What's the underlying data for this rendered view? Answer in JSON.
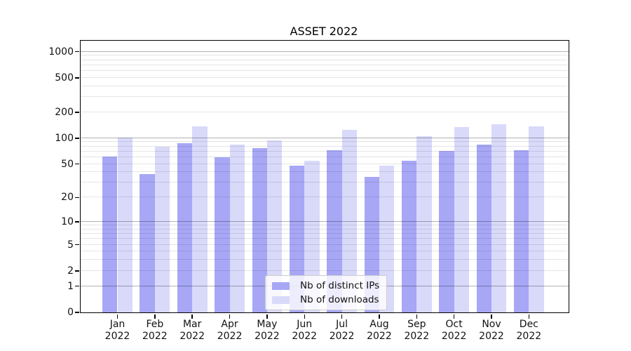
{
  "chart_data": {
    "type": "bar",
    "title": "ASSET 2022",
    "categories": [
      "Jan",
      "Feb",
      "Mar",
      "Apr",
      "May",
      "Jun",
      "Jul",
      "Aug",
      "Sep",
      "Oct",
      "Nov",
      "Dec"
    ],
    "category_year": "2022",
    "series": [
      {
        "name": "Nb of distinct IPs",
        "color": "#a7a7f6",
        "values": [
          61,
          38,
          87,
          60,
          76,
          48,
          72,
          35,
          55,
          71,
          85,
          73
        ]
      },
      {
        "name": "Nb of downloads",
        "color": "#d9d9fa",
        "values": [
          102,
          79,
          136,
          84,
          94,
          55,
          125,
          48,
          105,
          134,
          144,
          136
        ]
      }
    ],
    "yscale": "log1p",
    "ylim": [
      0,
      1340
    ],
    "ytick_values": [
      0,
      1,
      2,
      5,
      10,
      20,
      50,
      100,
      200,
      500,
      1000
    ],
    "ytick_labels": [
      "0",
      "1",
      "2",
      "5",
      "10",
      "20",
      "50",
      "100",
      "200",
      "500",
      "1000"
    ],
    "xlabel": "",
    "ylabel": "",
    "grid": "on",
    "legend_position": "lower-center"
  },
  "colors": {
    "bar_dark": "#a7a7f6",
    "bar_light": "#d9d9fa",
    "spine": "#000000",
    "legend_border": "#cccccc"
  }
}
